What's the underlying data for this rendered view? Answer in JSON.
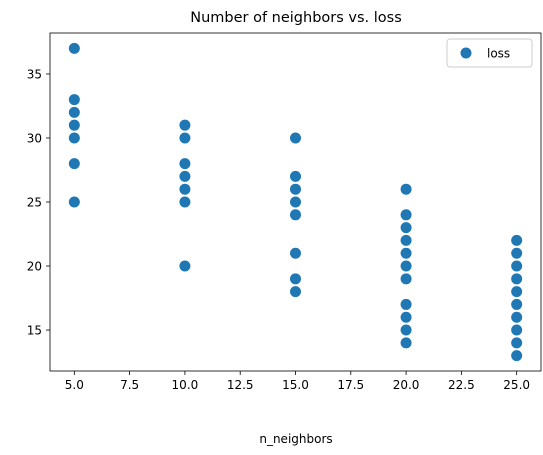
{
  "chart_data": {
    "type": "scatter",
    "title": "Number of neighbors vs. loss",
    "xlabel": "n_neighbors",
    "ylabel": "",
    "xlim": [
      3.9,
      26.1
    ],
    "ylim": [
      11.8,
      38.2
    ],
    "xticks": [
      5.0,
      7.5,
      10.0,
      12.5,
      15.0,
      17.5,
      20.0,
      22.5,
      25.0
    ],
    "xtick_labels": [
      "5.0",
      "7.5",
      "10.0",
      "12.5",
      "15.0",
      "17.5",
      "20.0",
      "22.5",
      "25.0"
    ],
    "yticks": [
      15,
      20,
      25,
      30,
      35
    ],
    "ytick_labels": [
      "15",
      "20",
      "25",
      "30",
      "35"
    ],
    "grid": false,
    "legend_position": "top-right",
    "series": [
      {
        "name": "loss",
        "color": "#1f77b4",
        "points": [
          [
            5,
            37
          ],
          [
            5,
            33
          ],
          [
            5,
            32
          ],
          [
            5,
            31
          ],
          [
            5,
            30
          ],
          [
            5,
            28
          ],
          [
            5,
            25
          ],
          [
            10,
            31
          ],
          [
            10,
            30
          ],
          [
            10,
            28
          ],
          [
            10,
            27
          ],
          [
            10,
            26
          ],
          [
            10,
            25
          ],
          [
            10,
            20
          ],
          [
            15,
            30
          ],
          [
            15,
            27
          ],
          [
            15,
            26
          ],
          [
            15,
            25
          ],
          [
            15,
            24
          ],
          [
            15,
            21
          ],
          [
            15,
            19
          ],
          [
            15,
            18
          ],
          [
            20,
            26
          ],
          [
            20,
            24
          ],
          [
            20,
            23
          ],
          [
            20,
            22
          ],
          [
            20,
            21
          ],
          [
            20,
            20
          ],
          [
            20,
            19
          ],
          [
            20,
            17
          ],
          [
            20,
            16
          ],
          [
            20,
            15
          ],
          [
            20,
            14
          ],
          [
            25,
            22
          ],
          [
            25,
            21
          ],
          [
            25,
            20
          ],
          [
            25,
            19
          ],
          [
            25,
            18
          ],
          [
            25,
            17
          ],
          [
            25,
            16
          ],
          [
            25,
            15
          ],
          [
            25,
            14
          ],
          [
            25,
            13
          ]
        ]
      }
    ]
  }
}
